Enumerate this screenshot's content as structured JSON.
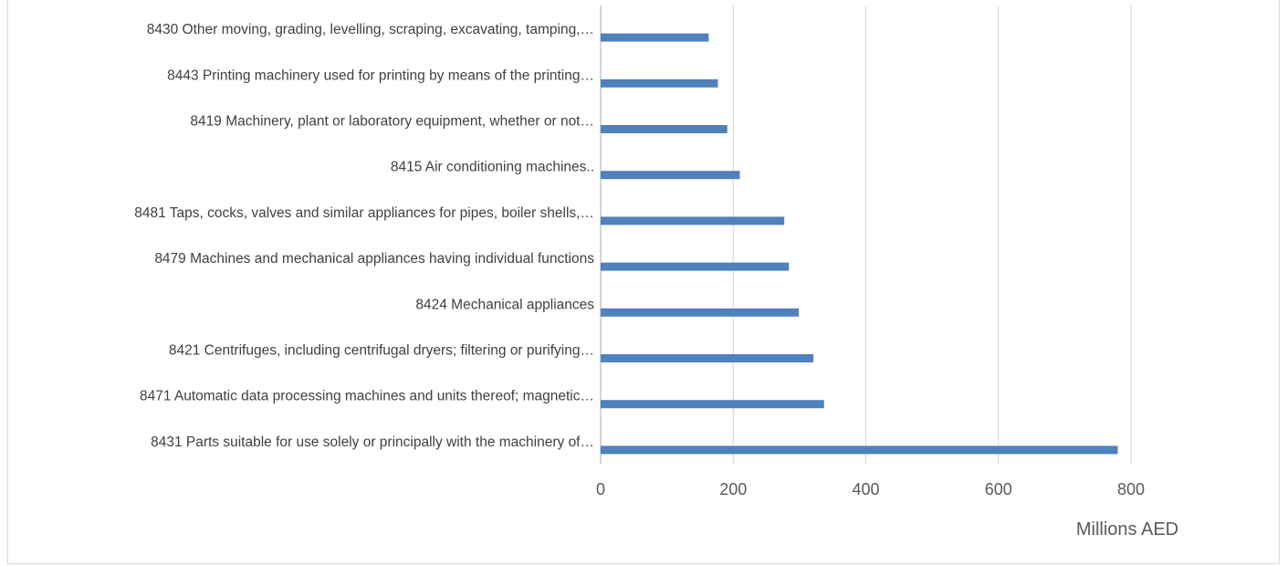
{
  "chart_data": {
    "type": "bar",
    "orientation": "horizontal",
    "categories": [
      "8431 Parts suitable for use solely or principally with the machinery of…",
      "8471 Automatic data processing machines and units thereof; magnetic…",
      "8421 Centrifuges, including centrifugal dryers; filtering or purifying…",
      "8424 Mechanical appliances",
      "8479 Machines and mechanical appliances having individual functions",
      "8481 Taps, cocks, valves and similar appliances for pipes, boiler shells,…",
      "8415 Air conditioning machines..",
      "8419 Machinery, plant or laboratory equipment, whether or not…",
      "8443 Printing machinery used for printing by means of the printing…",
      "8430 Other moving, grading, levelling, scraping, excavating, tamping,…"
    ],
    "values": [
      780,
      337,
      321,
      299,
      284,
      277,
      210,
      191,
      177,
      163
    ],
    "xlabel": "Millions AED",
    "xlim": [
      0,
      800
    ],
    "xticks": [
      0,
      200,
      400,
      600,
      800
    ],
    "grid": true,
    "bar_color": "#4f81bd",
    "grid_color": "#d9d9d9"
  }
}
